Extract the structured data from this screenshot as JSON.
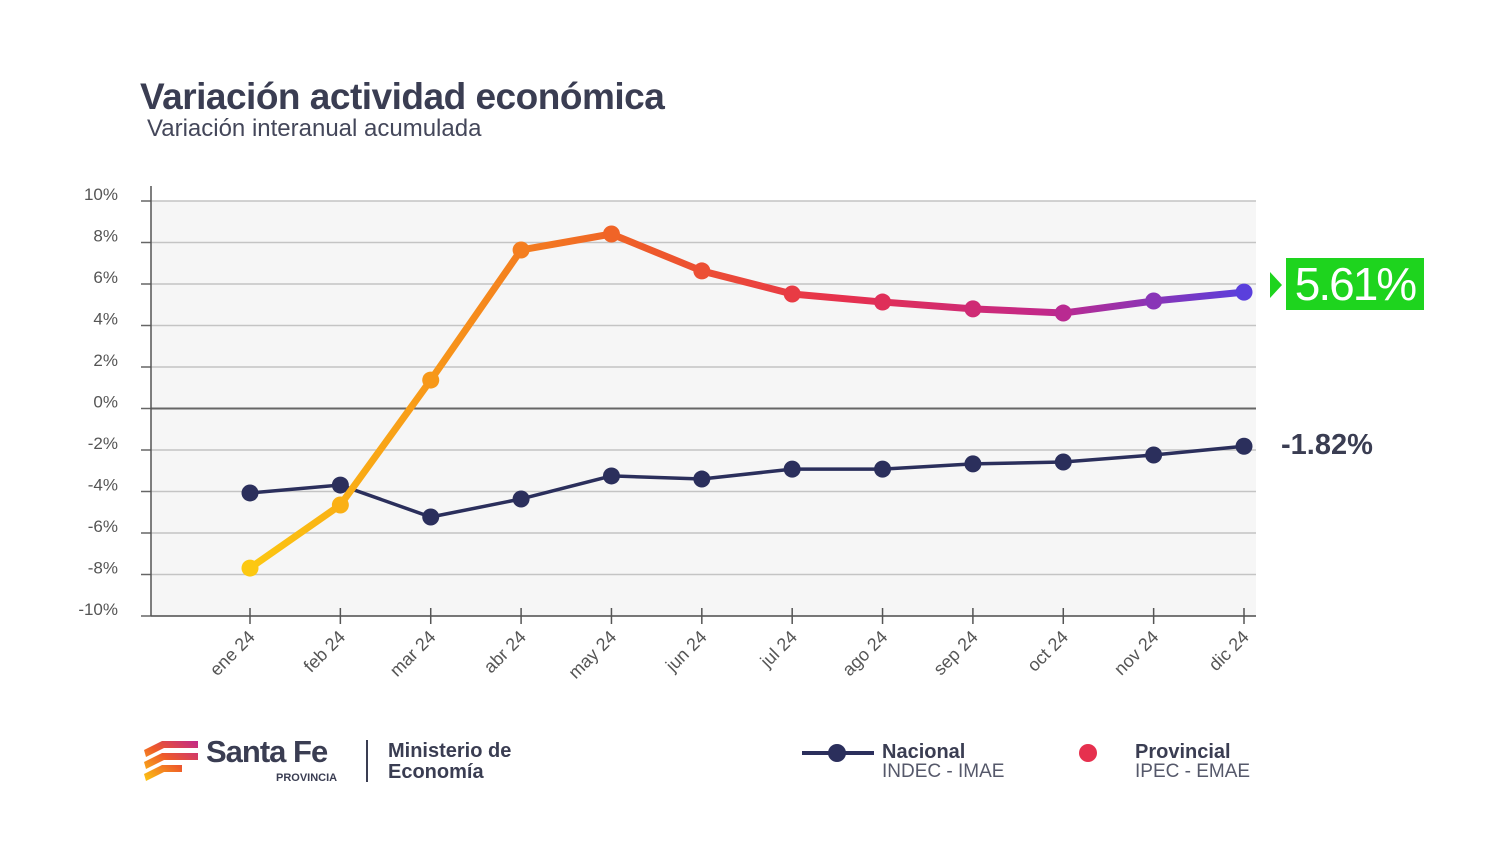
{
  "header": {
    "title": "Variación actividad económica",
    "subtitle": "Variación interanual acumulada"
  },
  "chart_data": {
    "type": "line",
    "title": "Variación actividad económica",
    "subtitle": "Variación interanual acumulada",
    "xlabel": "",
    "ylabel": "",
    "categories": [
      "ene 24",
      "feb 24",
      "mar 24",
      "abr 24",
      "may 24",
      "jun 24",
      "jul 24",
      "ago 24",
      "sep 24",
      "oct 24",
      "nov 24",
      "dic 24"
    ],
    "ylim": [
      -10,
      10
    ],
    "yticks": [
      "10%",
      "8%",
      "6%",
      "4%",
      "2%",
      "0%",
      "-2%",
      "-4%",
      "-6%",
      "-8%",
      "-10%"
    ],
    "grid": true,
    "legend_position": "bottom-right",
    "series": [
      {
        "name": "Nacional",
        "source": "INDEC - IMAE",
        "color": "#2b2f5c",
        "values": [
          -4.07,
          -3.69,
          -5.23,
          -4.36,
          -3.25,
          -3.4,
          -2.92,
          -2.92,
          -2.67,
          -2.58,
          -2.24,
          -1.82
        ],
        "end_label": "-1.82%"
      },
      {
        "name": "Provincial",
        "source": "IPEC - EMAE",
        "colors": [
          "#fcc811",
          "#f7931a",
          "#ee5a2a",
          "#e6304e",
          "#c2288a",
          "#5a3fdc"
        ],
        "values": [
          -7.69,
          -4.65,
          1.37,
          7.64,
          8.41,
          6.63,
          5.52,
          5.13,
          4.8,
          4.6,
          5.18,
          5.61
        ],
        "end_label": "5.61%",
        "end_label_color": "#1ed41e"
      }
    ]
  },
  "footer": {
    "brand": "Santa Fe",
    "brand_sub": "PROVINCIA",
    "ministry_line1": "Ministerio de",
    "ministry_line2": "Economía"
  }
}
